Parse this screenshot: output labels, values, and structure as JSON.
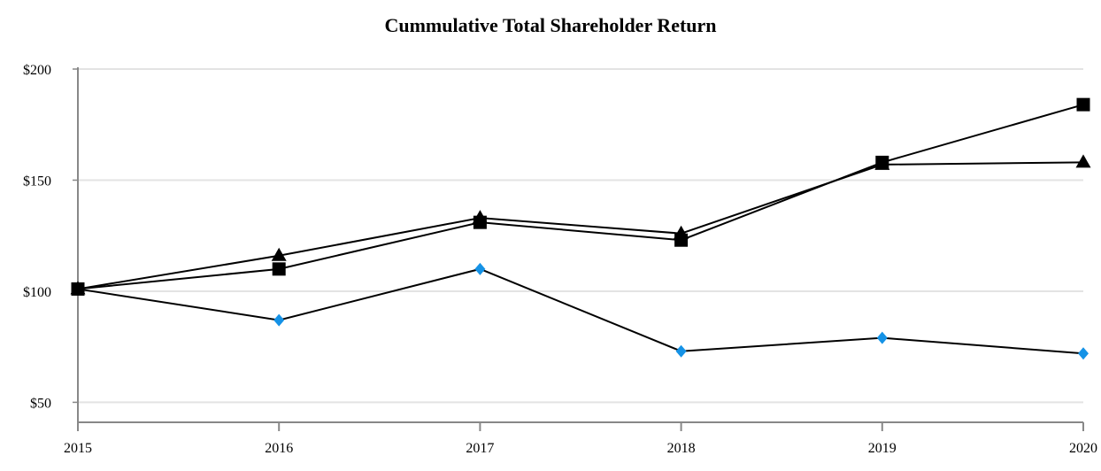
{
  "chart_data": {
    "type": "line",
    "title": "Cummulative Total Shareholder Return",
    "categories": [
      "2015",
      "2016",
      "2017",
      "2018",
      "2019",
      "2020"
    ],
    "y_tick_labels": [
      "$50",
      "$100",
      "$150",
      "$200"
    ],
    "y_ticks": [
      50,
      100,
      150,
      200
    ],
    "ylim": [
      41,
      200
    ],
    "grid": true,
    "series": [
      {
        "marker": "diamond",
        "color": "#1592e6",
        "values": [
          101,
          87,
          110,
          73,
          79,
          72
        ]
      },
      {
        "marker": "triangle",
        "color": "#000000",
        "values": [
          101,
          116,
          133,
          126,
          157,
          158
        ]
      },
      {
        "marker": "square",
        "color": "#000000",
        "values": [
          101,
          110,
          131,
          123,
          158,
          184
        ]
      }
    ]
  }
}
